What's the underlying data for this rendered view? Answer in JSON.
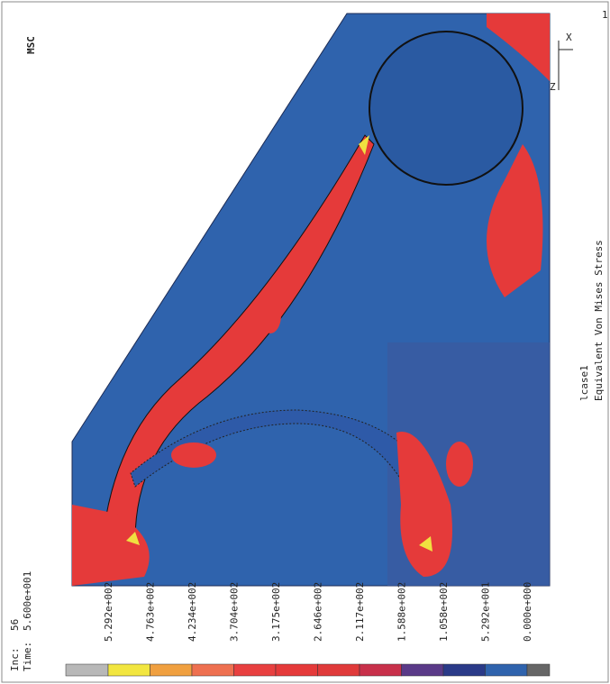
{
  "header": {
    "inc_label": "Inc:",
    "inc": "56",
    "time_label": "Time:",
    "time": "5.600e+001"
  },
  "logo": "MSC",
  "page_number": "1",
  "triad": [
    "X",
    "Z"
  ],
  "legend": {
    "labels": [
      "5.292e+002",
      "4.763e+002",
      "4.234e+002",
      "3.704e+002",
      "3.175e+002",
      "2.646e+002",
      "2.117e+002",
      "1.588e+002",
      "1.058e+002",
      "5.292e+001",
      "0.000e+000"
    ]
  },
  "footer": {
    "load_case": "lcase1",
    "result": "Equivalent Von Mises Stress"
  }
}
